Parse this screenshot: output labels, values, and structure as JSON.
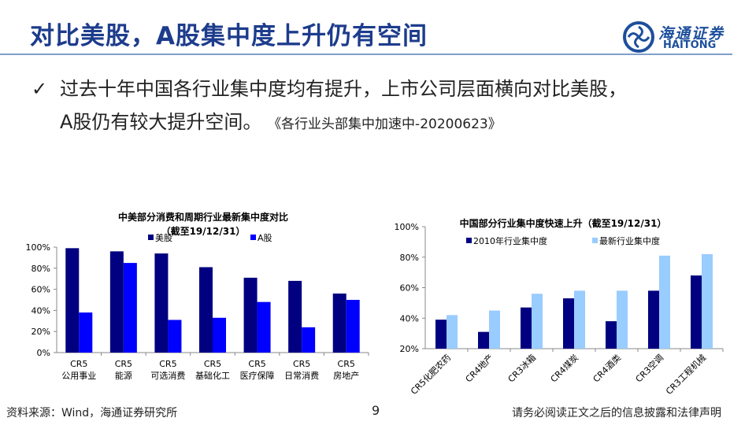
{
  "header": {
    "title": "对比美股，A股集中度上升仍有空间",
    "logo_cn": "海通证券",
    "logo_en": "HAITONG"
  },
  "bullet": {
    "icon": "check-icon",
    "line1": "过去十年中国各行业集中度均有提升，上市公司层面横向对比美股，",
    "line2": "A股仍有较大提升空间。",
    "ref": "《各行业头部集中加速中-20200623》"
  },
  "footer": {
    "source": "资料来源：Wind，海通证券研究所",
    "page": "9",
    "disclaimer": "请务必阅读正文之后的信息披露和法律声明"
  },
  "chart_data": [
    {
      "type": "bar",
      "title": "中美部分消费和周期行业最新集中度对比",
      "subtitle": "（截至19/12/31）",
      "categories": [
        "CR5\n公用事业",
        "CR5\n能源",
        "CR5\n可选消费",
        "CR5\n基础化工",
        "CR5\n医疗保障",
        "CR5\n日常消费",
        "CR5\n房地产"
      ],
      "series": [
        {
          "name": "美股",
          "color": "#000080",
          "values": [
            99,
            96,
            94,
            81,
            71,
            68,
            56
          ]
        },
        {
          "name": "A股",
          "color": "#0000ff",
          "values": [
            38,
            85,
            31,
            33,
            48,
            24,
            50
          ]
        }
      ],
      "ylim": [
        0,
        100
      ],
      "yticks": [
        "0%",
        "20%",
        "40%",
        "60%",
        "80%",
        "100%"
      ],
      "legend": "top"
    },
    {
      "type": "bar",
      "title": "中国部分行业集中度快速上升（截至19/12/31）",
      "categories": [
        "CR5化肥农药",
        "CR4地产",
        "CR3冰箱",
        "CR4煤炭",
        "CR4酒类",
        "CR3空调",
        "CR3工程机械"
      ],
      "series": [
        {
          "name": "2010年行业集中度",
          "color": "#000080",
          "values": [
            39,
            31,
            47,
            53,
            38,
            58,
            68
          ]
        },
        {
          "name": "最新行业集中度",
          "color": "#99ccff",
          "values": [
            42,
            45,
            56,
            58,
            58,
            81,
            82
          ]
        }
      ],
      "ylim": [
        20,
        100
      ],
      "yticks": [
        "20%",
        "40%",
        "60%",
        "80%",
        "100%"
      ],
      "legend": "top"
    }
  ]
}
